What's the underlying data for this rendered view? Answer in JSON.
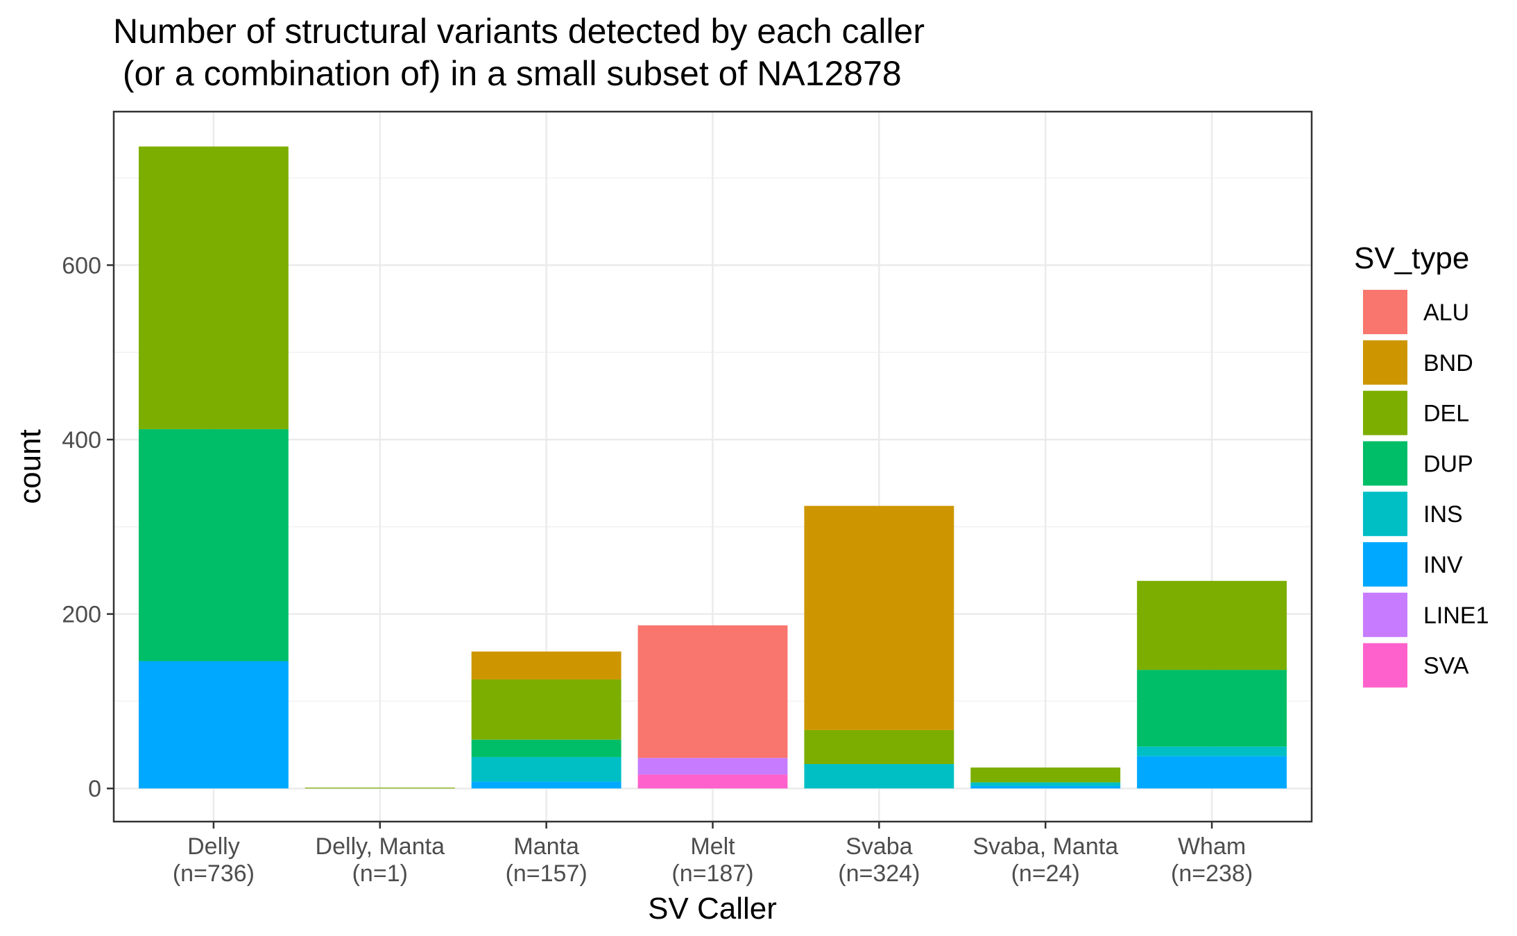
{
  "chart_data": {
    "type": "bar",
    "stacked": true,
    "title_line1": "Number of structural variants detected by each caller",
    "title_line2": " (or a combination of) in a small subset of NA12878",
    "xlabel": "SV Caller",
    "ylabel": "count",
    "ylim": [
      -38,
      776
    ],
    "yticks": [
      0,
      200,
      400,
      600
    ],
    "grid": true,
    "legend_title": "SV_type",
    "legend_position": "right",
    "categories": [
      {
        "name": "Delly",
        "n": "(n=736)"
      },
      {
        "name": "Delly, Manta",
        "n": "(n=1)"
      },
      {
        "name": "Manta",
        "n": "(n=157)"
      },
      {
        "name": "Melt",
        "n": "(n=187)"
      },
      {
        "name": "Svaba",
        "n": "(n=324)"
      },
      {
        "name": "Svaba, Manta",
        "n": "(n=24)"
      },
      {
        "name": "Wham",
        "n": "(n=238)"
      }
    ],
    "series": [
      {
        "name": "ALU",
        "color": "#F8766D",
        "values": [
          0,
          0,
          0,
          152,
          0,
          0,
          0
        ]
      },
      {
        "name": "BND",
        "color": "#CD9600",
        "values": [
          0,
          0,
          32,
          0,
          257,
          0,
          0
        ]
      },
      {
        "name": "DEL",
        "color": "#7CAE00",
        "values": [
          324,
          1,
          69,
          0,
          39,
          17,
          102
        ]
      },
      {
        "name": "DUP",
        "color": "#00BE67",
        "values": [
          266,
          0,
          20,
          0,
          0,
          0,
          88
        ]
      },
      {
        "name": "INS",
        "color": "#00BFC4",
        "values": [
          0,
          0,
          28,
          0,
          28,
          4,
          11
        ]
      },
      {
        "name": "INV",
        "color": "#00A9FF",
        "values": [
          146,
          0,
          8,
          0,
          0,
          3,
          37
        ]
      },
      {
        "name": "LINE1",
        "color": "#C77CFF",
        "values": [
          0,
          0,
          0,
          19,
          0,
          0,
          0
        ]
      },
      {
        "name": "SVA",
        "color": "#FF61CC",
        "values": [
          0,
          0,
          0,
          16,
          0,
          0,
          0
        ]
      }
    ]
  }
}
